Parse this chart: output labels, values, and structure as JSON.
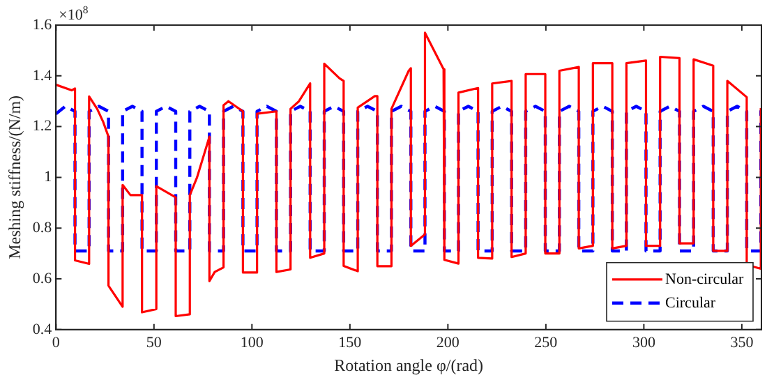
{
  "chart_data": {
    "type": "line",
    "xlabel": "Rotation angle φ/(rad)",
    "ylabel": "Meshing stiffness/(N/m)",
    "annotations": [
      "×10$^{8}$"
    ],
    "xlim": [
      0,
      360
    ],
    "xticks": [
      0,
      50,
      100,
      150,
      200,
      250,
      300,
      350
    ],
    "ylim": [
      0.4,
      1.6
    ],
    "yticks": [
      0.4,
      0.6,
      0.8,
      1,
      1.2,
      1.4,
      1.6
    ],
    "grid": false,
    "legend": "bottom right",
    "marker": "none",
    "series": [
      {
        "name": "Non-circular",
        "color": "#ff0000",
        "line_style": "solid",
        "x": [
          0,
          8,
          9.7,
          9.7,
          16.9,
          16.9,
          21,
          24,
          26.8,
          26.8,
          34,
          34,
          38,
          43.9,
          43.9,
          51.2,
          51.2,
          61.1,
          61.1,
          68.3,
          68.3,
          72,
          78.3,
          78.3,
          81,
          85.5,
          85.5,
          88,
          95.4,
          95.4,
          102.6,
          102.6,
          112.5,
          112.5,
          119.7,
          119.7,
          124,
          129.7,
          129.7,
          136.9,
          136.9,
          144.7,
          146.8,
          146.8,
          154,
          154,
          162.7,
          164,
          164,
          171.2,
          171.2,
          180,
          181.1,
          181.1,
          188.3,
          188.3,
          197.8,
          198.2,
          198.2,
          205.4,
          205.4,
          215.4,
          215.4,
          222.6,
          222.6,
          232.5,
          232.5,
          239.7,
          239.7,
          249.7,
          249.7,
          256.9,
          256.9,
          266.8,
          266.8,
          274,
          274,
          283.9,
          283.9,
          291.1,
          291.1,
          301.1,
          301.1,
          308.3,
          308.3,
          318.2,
          318.2,
          325.4,
          325.4,
          335.4,
          335.4,
          342.6,
          342.6,
          352.5,
          352.5,
          359.7,
          359.7
        ],
        "values": [
          1.365,
          1.343,
          1.35,
          0.673,
          0.659,
          1.319,
          1.27,
          1.22,
          1.16,
          0.573,
          0.49,
          0.97,
          0.93,
          0.93,
          0.468,
          0.481,
          0.965,
          0.921,
          0.453,
          0.46,
          0.93,
          1.0,
          1.16,
          0.591,
          0.627,
          0.645,
          1.284,
          1.3,
          1.26,
          0.625,
          0.625,
          1.251,
          1.26,
          0.627,
          0.637,
          1.27,
          1.3,
          1.37,
          0.683,
          0.7,
          1.448,
          1.39,
          1.38,
          0.651,
          0.63,
          1.275,
          1.32,
          1.32,
          0.65,
          0.65,
          1.27,
          1.42,
          1.43,
          0.73,
          0.775,
          1.57,
          1.426,
          1.42,
          0.675,
          0.66,
          1.334,
          1.352,
          0.683,
          0.68,
          1.37,
          1.38,
          0.686,
          0.7,
          1.407,
          1.407,
          0.7,
          0.7,
          1.42,
          1.435,
          0.72,
          0.73,
          1.45,
          1.45,
          0.72,
          0.73,
          1.45,
          1.46,
          0.73,
          0.73,
          1.475,
          1.47,
          0.74,
          0.74,
          1.465,
          1.44,
          0.71,
          0.71,
          1.38,
          1.316,
          0.655,
          0.64,
          1.273
        ]
      },
      {
        "name": "Circular",
        "color": "#0000ff",
        "line_style": "dashed",
        "x": [
          0,
          4.8,
          9.7,
          9.7,
          16.9,
          16.9,
          21.9,
          26.8,
          26.8,
          34,
          34,
          39,
          43.9,
          43.9,
          51.2,
          51.2,
          56.2,
          61.1,
          61.1,
          68.3,
          68.3,
          73.3,
          78.3,
          78.3,
          85.5,
          85.5,
          90.5,
          95.4,
          95.4,
          102.6,
          102.6,
          107.6,
          112.5,
          112.5,
          119.7,
          119.7,
          124.7,
          129.7,
          129.7,
          136.9,
          136.9,
          141.9,
          146.8,
          146.8,
          154,
          154,
          159,
          164,
          164,
          171.2,
          171.2,
          176.2,
          181.1,
          181.1,
          188.3,
          188.3,
          193.3,
          198.2,
          198.2,
          205.4,
          205.4,
          210.4,
          215.4,
          215.4,
          222.6,
          222.6,
          227.6,
          232.5,
          232.5,
          239.7,
          239.7,
          244.7,
          249.7,
          249.7,
          256.9,
          256.9,
          261.9,
          266.8,
          266.8,
          274,
          274,
          279,
          283.9,
          283.9,
          291.1,
          291.1,
          296.1,
          301.1,
          301.1,
          308.3,
          308.3,
          313.3,
          318.2,
          318.2,
          325.4,
          325.4,
          330.4,
          335.4,
          335.4,
          342.6,
          342.6,
          347.6,
          352.5,
          352.5,
          359.7,
          359.7,
          360
        ],
        "values": [
          1.25,
          1.28,
          1.26,
          0.71,
          0.71,
          1.26,
          1.28,
          1.26,
          0.71,
          0.71,
          1.26,
          1.28,
          1.26,
          0.71,
          0.71,
          1.26,
          1.28,
          1.26,
          0.71,
          0.71,
          1.26,
          1.28,
          1.26,
          0.71,
          0.71,
          1.26,
          1.28,
          1.26,
          0.71,
          0.71,
          1.26,
          1.28,
          1.26,
          0.71,
          0.71,
          1.26,
          1.28,
          1.26,
          0.71,
          0.71,
          1.26,
          1.28,
          1.26,
          0.71,
          0.71,
          1.26,
          1.28,
          1.26,
          0.71,
          0.71,
          1.26,
          1.28,
          1.26,
          0.71,
          0.71,
          1.26,
          1.28,
          1.26,
          0.71,
          0.71,
          1.26,
          1.28,
          1.26,
          0.71,
          0.71,
          1.26,
          1.28,
          1.26,
          0.71,
          0.71,
          1.26,
          1.28,
          1.26,
          0.71,
          0.71,
          1.26,
          1.28,
          1.26,
          0.71,
          0.71,
          1.26,
          1.28,
          1.26,
          0.71,
          0.71,
          1.26,
          1.28,
          1.26,
          0.71,
          0.71,
          1.26,
          1.28,
          1.26,
          0.71,
          0.71,
          1.26,
          1.28,
          1.26,
          0.71,
          0.71,
          1.26,
          1.28,
          1.26,
          0.71,
          0.71,
          1.26,
          1.26
        ]
      }
    ]
  }
}
